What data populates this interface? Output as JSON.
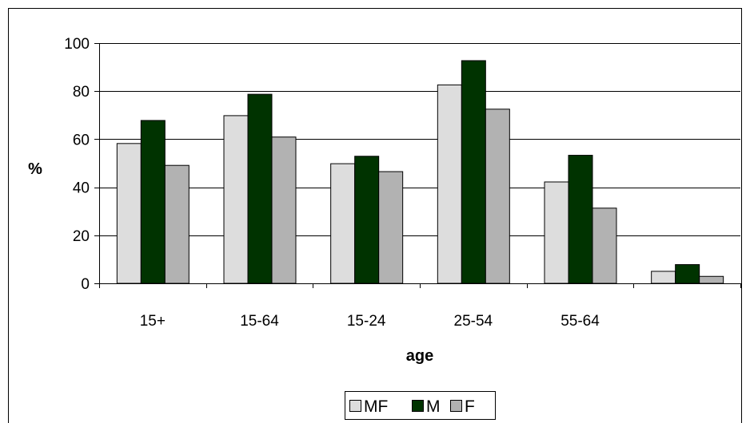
{
  "chart_data": {
    "type": "bar",
    "categories": [
      "15+",
      "15-64",
      "15-24",
      "25-54",
      "55-64",
      ""
    ],
    "series": [
      {
        "name": "MF",
        "values": [
          58.2,
          69.8,
          49.8,
          82.6,
          42.2,
          5.0
        ],
        "color": "#dddddd"
      },
      {
        "name": "M",
        "values": [
          67.8,
          78.7,
          52.9,
          92.7,
          53.3,
          7.8
        ],
        "color": "#003300"
      },
      {
        "name": "F",
        "values": [
          49.1,
          60.9,
          46.5,
          72.5,
          31.3,
          2.9
        ],
        "color": "#b2b2b2"
      }
    ],
    "xlabel": "age",
    "ylabel": "%",
    "ylim": [
      0,
      100
    ],
    "yticks": [
      0,
      20,
      40,
      60,
      80,
      100
    ],
    "grid": true,
    "legend": "bottom"
  }
}
